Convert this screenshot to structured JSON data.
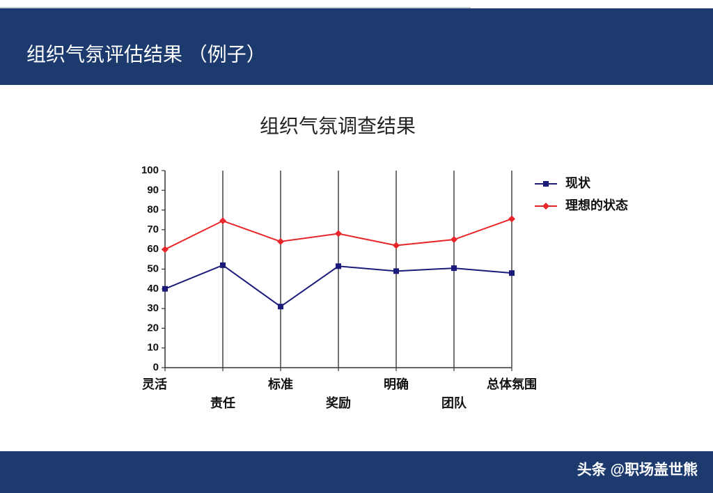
{
  "header": {
    "title": "组织气氛评估结果 （例子）"
  },
  "chart_data": {
    "type": "line",
    "title": "组织气氛调查结果",
    "categories": [
      "灵活",
      "责任",
      "标准",
      "奖励",
      "明确",
      "团队",
      "总体氛围"
    ],
    "series": [
      {
        "name": "现状",
        "color": "#1a1a7a",
        "marker": "square",
        "values": [
          40,
          52,
          31,
          51.5,
          49,
          50.5,
          48
        ]
      },
      {
        "name": "理想的状态",
        "color": "#e8262a",
        "marker": "diamond",
        "values": [
          60,
          74.5,
          64,
          68,
          62,
          65,
          75.5
        ]
      }
    ],
    "ylim": [
      0,
      100
    ],
    "yticks": [
      0,
      10,
      20,
      30,
      40,
      50,
      60,
      70,
      80,
      90,
      100
    ],
    "grid": true,
    "legend": "right"
  },
  "footer": {
    "watermark": "头条 @职场盖世熊"
  }
}
